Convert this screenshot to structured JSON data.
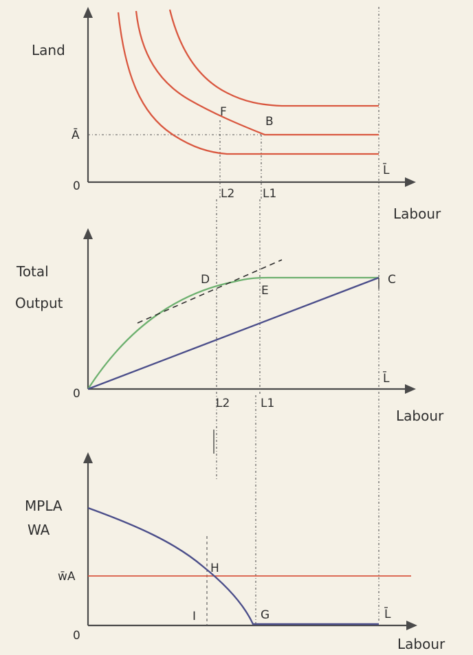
{
  "panel_top": {
    "y_label": "Land",
    "x_label": "Labour",
    "origin": "0",
    "y_tick": "Ā",
    "x_ticks": [
      "L2",
      "L1",
      "L̄"
    ],
    "points": [
      "F",
      "B"
    ]
  },
  "panel_middle": {
    "y_label_line1": "Total",
    "y_label_line2": "Output",
    "x_label": "Labour",
    "origin": "0",
    "x_ticks": [
      "L2",
      "L1",
      "L̄"
    ],
    "points": [
      "D",
      "E",
      "C"
    ]
  },
  "panel_bottom": {
    "y_label_line1": "MPLA",
    "y_label_line2": "WA",
    "x_label": "Labour",
    "origin": "0",
    "y_tick": "w̄A",
    "x_ticks": [
      "L̄"
    ],
    "points": [
      "H",
      "I",
      "G"
    ]
  },
  "colors": {
    "isoquant": "#d9573f",
    "output_curve": "#6cb06e",
    "ray_and_mpl": "#4b4e8a",
    "wage_line": "#d9573f"
  }
}
